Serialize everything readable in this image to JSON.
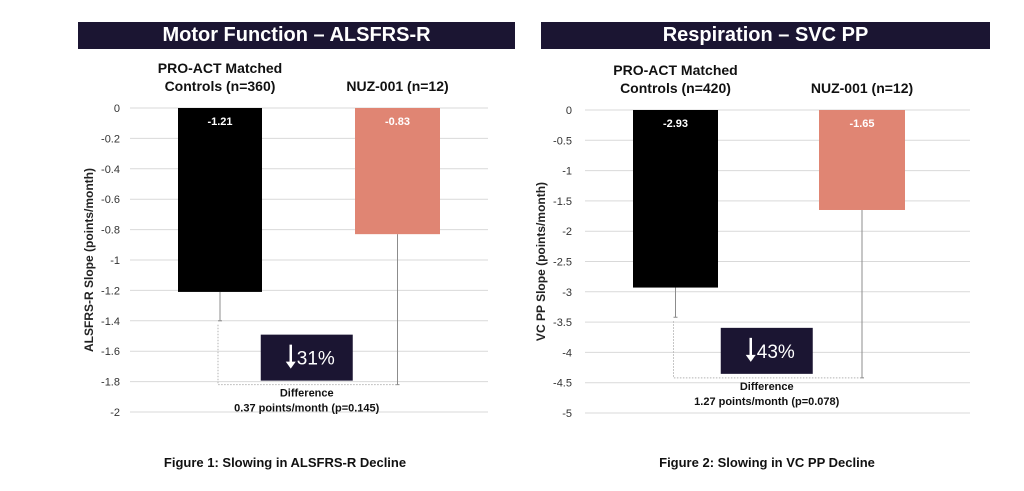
{
  "chart_data": [
    {
      "type": "bar",
      "title": "Motor Function – ALSFRS-R",
      "caption": "Figure 1: Slowing in ALSFRS-R Decline",
      "ylabel": "ALSFRS-R Slope (points/month)",
      "ylim": [
        -2,
        0
      ],
      "yticks": [
        0,
        -0.2,
        -0.4,
        -0.6,
        -0.8,
        -1,
        -1.2,
        -1.4,
        -1.6,
        -1.8,
        -2
      ],
      "grid": true,
      "categories": [
        {
          "line1": "PRO-ACT Matched",
          "line2": "Controls (n=360)"
        },
        {
          "line1": "NUZ-001 (n=12)",
          "line2": ""
        }
      ],
      "values": [
        -1.21,
        -0.83
      ],
      "value_labels": [
        "-1.21",
        "-0.83"
      ],
      "error_low": [
        -1.4,
        -1.82
      ],
      "colors": [
        "#000000",
        "#e08573"
      ],
      "difference": {
        "percent": "31%",
        "label": "Difference",
        "detail": "0.37 points/month (p=0.145)"
      }
    },
    {
      "type": "bar",
      "title": "Respiration – SVC PP",
      "caption": "Figure 2: Slowing in VC PP Decline",
      "ylabel": "VC PP Slope (points/month)",
      "ylim": [
        -5,
        0
      ],
      "yticks": [
        0,
        -0.5,
        -1,
        -1.5,
        -2,
        -2.5,
        -3,
        -3.5,
        -4,
        -4.5,
        -5
      ],
      "grid": true,
      "categories": [
        {
          "line1": "PRO-ACT Matched",
          "line2": "Controls (n=420)"
        },
        {
          "line1": "NUZ-001 (n=12)",
          "line2": ""
        }
      ],
      "values": [
        -2.93,
        -1.65
      ],
      "value_labels": [
        "-2.93",
        "-1.65"
      ],
      "error_low": [
        -3.42,
        -4.42
      ],
      "colors": [
        "#000000",
        "#e08573"
      ],
      "difference": {
        "percent": "43%",
        "label": "Difference",
        "detail": "1.27 points/month (p=0.078)"
      }
    }
  ]
}
